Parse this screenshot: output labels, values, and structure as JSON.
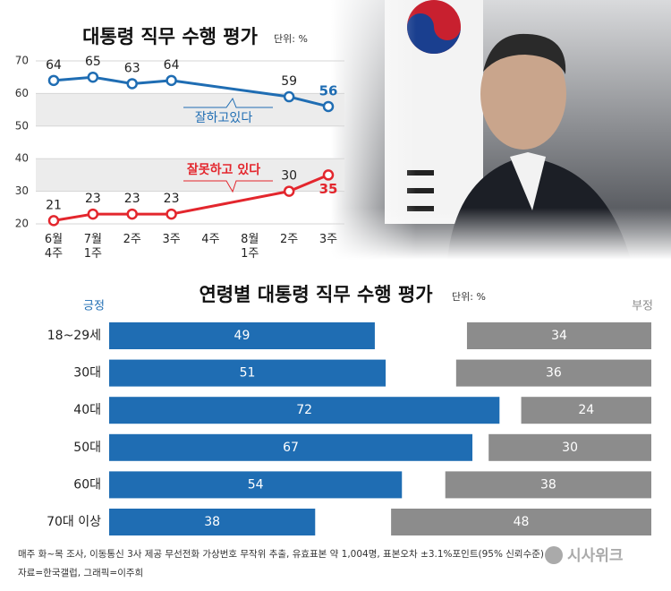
{
  "chart_data": [
    {
      "type": "line",
      "title": "대통령 직무 수행 평가",
      "unit": "단위: %",
      "categories": [
        "6월\n4주",
        "7월\n1주",
        "2주",
        "3주",
        "4주",
        "8월\n1주",
        "2주",
        "3주"
      ],
      "series": [
        {
          "name": "잘하고있다",
          "color": "#1f6db3",
          "values": [
            64,
            65,
            63,
            64,
            null,
            null,
            59,
            56
          ]
        },
        {
          "name": "잘못하고 있다",
          "color": "#e3262d",
          "values": [
            21,
            23,
            23,
            23,
            null,
            null,
            30,
            35
          ]
        }
      ],
      "ylim": [
        20,
        70
      ],
      "yticks": [
        20,
        30,
        40,
        50,
        60,
        70
      ],
      "grid": true
    },
    {
      "type": "diverging_bar",
      "title": "연령별 대통령 직무 수행 평가",
      "unit": "단위: %",
      "categories": [
        "18~29세",
        "30대",
        "40대",
        "50대",
        "60대",
        "70대 이상"
      ],
      "series": [
        {
          "name": "긍정",
          "color": "#1f6db3",
          "values": [
            49,
            51,
            72,
            67,
            54,
            38
          ]
        },
        {
          "name": "부정",
          "color": "#8c8c8c",
          "values": [
            34,
            36,
            24,
            30,
            38,
            48
          ]
        }
      ],
      "xlim": [
        0,
        100
      ]
    }
  ],
  "footer": {
    "note": "매주 화~목 조사, 이동통신 3사 제공 무선전화 가상번호 무작위 추출, 유효표본 약 1,004명, 표본오차 ±3.1%포인트(95% 신뢰수준)",
    "source": "자료=한국갤럽, 그래픽=이주희",
    "logo": "시사위크"
  }
}
